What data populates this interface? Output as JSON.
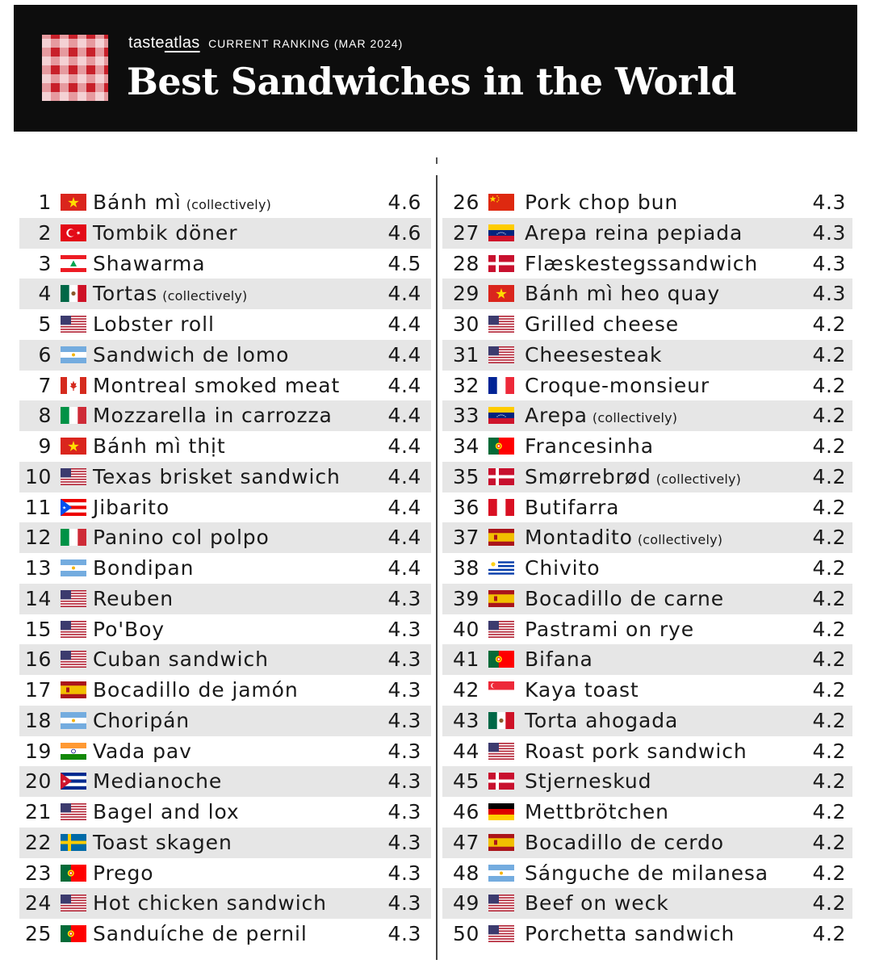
{
  "header": {
    "brand_pre": "taste",
    "brand_underlined": "atlas",
    "subtitle": "CURRENT RANKING (MAR 2024)",
    "title": "Best Sandwiches in the World"
  },
  "items": [
    {
      "rank": "1",
      "flag": "vn",
      "name": "Bánh mì",
      "note": "(collectively)",
      "score": "4.6"
    },
    {
      "rank": "2",
      "flag": "tr",
      "name": "Tombik döner",
      "note": "",
      "score": "4.6"
    },
    {
      "rank": "3",
      "flag": "lb",
      "name": "Shawarma",
      "note": "",
      "score": "4.5"
    },
    {
      "rank": "4",
      "flag": "mx",
      "name": "Tortas",
      "note": "(collectively)",
      "score": "4.4"
    },
    {
      "rank": "5",
      "flag": "us",
      "name": "Lobster roll",
      "note": "",
      "score": "4.4"
    },
    {
      "rank": "6",
      "flag": "ar",
      "name": "Sandwich de lomo",
      "note": "",
      "score": "4.4"
    },
    {
      "rank": "7",
      "flag": "ca",
      "name": "Montreal smoked meat",
      "note": "",
      "score": "4.4"
    },
    {
      "rank": "8",
      "flag": "it",
      "name": "Mozzarella in carrozza",
      "note": "",
      "score": "4.4"
    },
    {
      "rank": "9",
      "flag": "vn",
      "name": "Bánh mì thịt",
      "note": "",
      "score": "4.4"
    },
    {
      "rank": "10",
      "flag": "us",
      "name": "Texas brisket sandwich",
      "note": "",
      "score": "4.4"
    },
    {
      "rank": "11",
      "flag": "pr",
      "name": "Jibarito",
      "note": "",
      "score": "4.4"
    },
    {
      "rank": "12",
      "flag": "it",
      "name": "Panino col polpo",
      "note": "",
      "score": "4.4"
    },
    {
      "rank": "13",
      "flag": "ar",
      "name": "Bondipan",
      "note": "",
      "score": "4.4"
    },
    {
      "rank": "14",
      "flag": "us",
      "name": "Reuben",
      "note": "",
      "score": "4.3"
    },
    {
      "rank": "15",
      "flag": "us",
      "name": "Po'Boy",
      "note": "",
      "score": "4.3"
    },
    {
      "rank": "16",
      "flag": "us",
      "name": "Cuban sandwich",
      "note": "",
      "score": "4.3"
    },
    {
      "rank": "17",
      "flag": "es",
      "name": "Bocadillo de jamón",
      "note": "",
      "score": "4.3"
    },
    {
      "rank": "18",
      "flag": "ar",
      "name": "Choripán",
      "note": "",
      "score": "4.3"
    },
    {
      "rank": "19",
      "flag": "in",
      "name": "Vada pav",
      "note": "",
      "score": "4.3"
    },
    {
      "rank": "20",
      "flag": "cu",
      "name": "Medianoche",
      "note": "",
      "score": "4.3"
    },
    {
      "rank": "21",
      "flag": "us",
      "name": "Bagel and lox",
      "note": "",
      "score": "4.3"
    },
    {
      "rank": "22",
      "flag": "se",
      "name": "Toast skagen",
      "note": "",
      "score": "4.3"
    },
    {
      "rank": "23",
      "flag": "pt",
      "name": "Prego",
      "note": "",
      "score": "4.3"
    },
    {
      "rank": "24",
      "flag": "us",
      "name": "Hot chicken sandwich",
      "note": "",
      "score": "4.3"
    },
    {
      "rank": "25",
      "flag": "pt",
      "name": "Sanduíche de pernil",
      "note": "",
      "score": "4.3"
    },
    {
      "rank": "26",
      "flag": "cn",
      "name": "Pork chop bun",
      "note": "",
      "score": "4.3"
    },
    {
      "rank": "27",
      "flag": "ve",
      "name": "Arepa reina pepiada",
      "note": "",
      "score": "4.3"
    },
    {
      "rank": "28",
      "flag": "dk",
      "name": "Flæskestegssandwich",
      "note": "",
      "score": "4.3"
    },
    {
      "rank": "29",
      "flag": "vn",
      "name": "Bánh mì heo quay",
      "note": "",
      "score": "4.3"
    },
    {
      "rank": "30",
      "flag": "us",
      "name": "Grilled cheese",
      "note": "",
      "score": "4.2"
    },
    {
      "rank": "31",
      "flag": "us",
      "name": "Cheesesteak",
      "note": "",
      "score": "4.2"
    },
    {
      "rank": "32",
      "flag": "fr",
      "name": "Croque-monsieur",
      "note": "",
      "score": "4.2"
    },
    {
      "rank": "33",
      "flag": "ve",
      "name": "Arepa",
      "note": "(collectively)",
      "score": "4.2"
    },
    {
      "rank": "34",
      "flag": "pt",
      "name": "Francesinha",
      "note": "",
      "score": "4.2"
    },
    {
      "rank": "35",
      "flag": "dk",
      "name": "Smørrebrød",
      "note": "(collectively)",
      "score": "4.2"
    },
    {
      "rank": "36",
      "flag": "pe",
      "name": "Butifarra",
      "note": "",
      "score": "4.2"
    },
    {
      "rank": "37",
      "flag": "es",
      "name": "Montadito",
      "note": "(collectively)",
      "score": "4.2"
    },
    {
      "rank": "38",
      "flag": "uy",
      "name": "Chivito",
      "note": "",
      "score": "4.2"
    },
    {
      "rank": "39",
      "flag": "es",
      "name": "Bocadillo de carne",
      "note": "",
      "score": "4.2"
    },
    {
      "rank": "40",
      "flag": "us",
      "name": "Pastrami on rye",
      "note": "",
      "score": "4.2"
    },
    {
      "rank": "41",
      "flag": "pt",
      "name": "Bifana",
      "note": "",
      "score": "4.2"
    },
    {
      "rank": "42",
      "flag": "sg",
      "name": "Kaya toast",
      "note": "",
      "score": "4.2"
    },
    {
      "rank": "43",
      "flag": "mx",
      "name": "Torta ahogada",
      "note": "",
      "score": "4.2"
    },
    {
      "rank": "44",
      "flag": "us",
      "name": "Roast pork sandwich",
      "note": "",
      "score": "4.2"
    },
    {
      "rank": "45",
      "flag": "dk",
      "name": "Stjerneskud",
      "note": "",
      "score": "4.2"
    },
    {
      "rank": "46",
      "flag": "de",
      "name": "Mettbrötchen",
      "note": "",
      "score": "4.2"
    },
    {
      "rank": "47",
      "flag": "es",
      "name": "Bocadillo de cerdo",
      "note": "",
      "score": "4.2"
    },
    {
      "rank": "48",
      "flag": "ar",
      "name": "Sánguche de milanesa",
      "note": "",
      "score": "4.2"
    },
    {
      "rank": "49",
      "flag": "us",
      "name": "Beef on weck",
      "note": "",
      "score": "4.2"
    },
    {
      "rank": "50",
      "flag": "us",
      "name": "Porchetta sandwich",
      "note": "",
      "score": "4.2"
    }
  ],
  "colors": {
    "header_bg": "#0d0d0d",
    "logo_red": "#c8202a",
    "row_shade": "#e6e6e6"
  }
}
